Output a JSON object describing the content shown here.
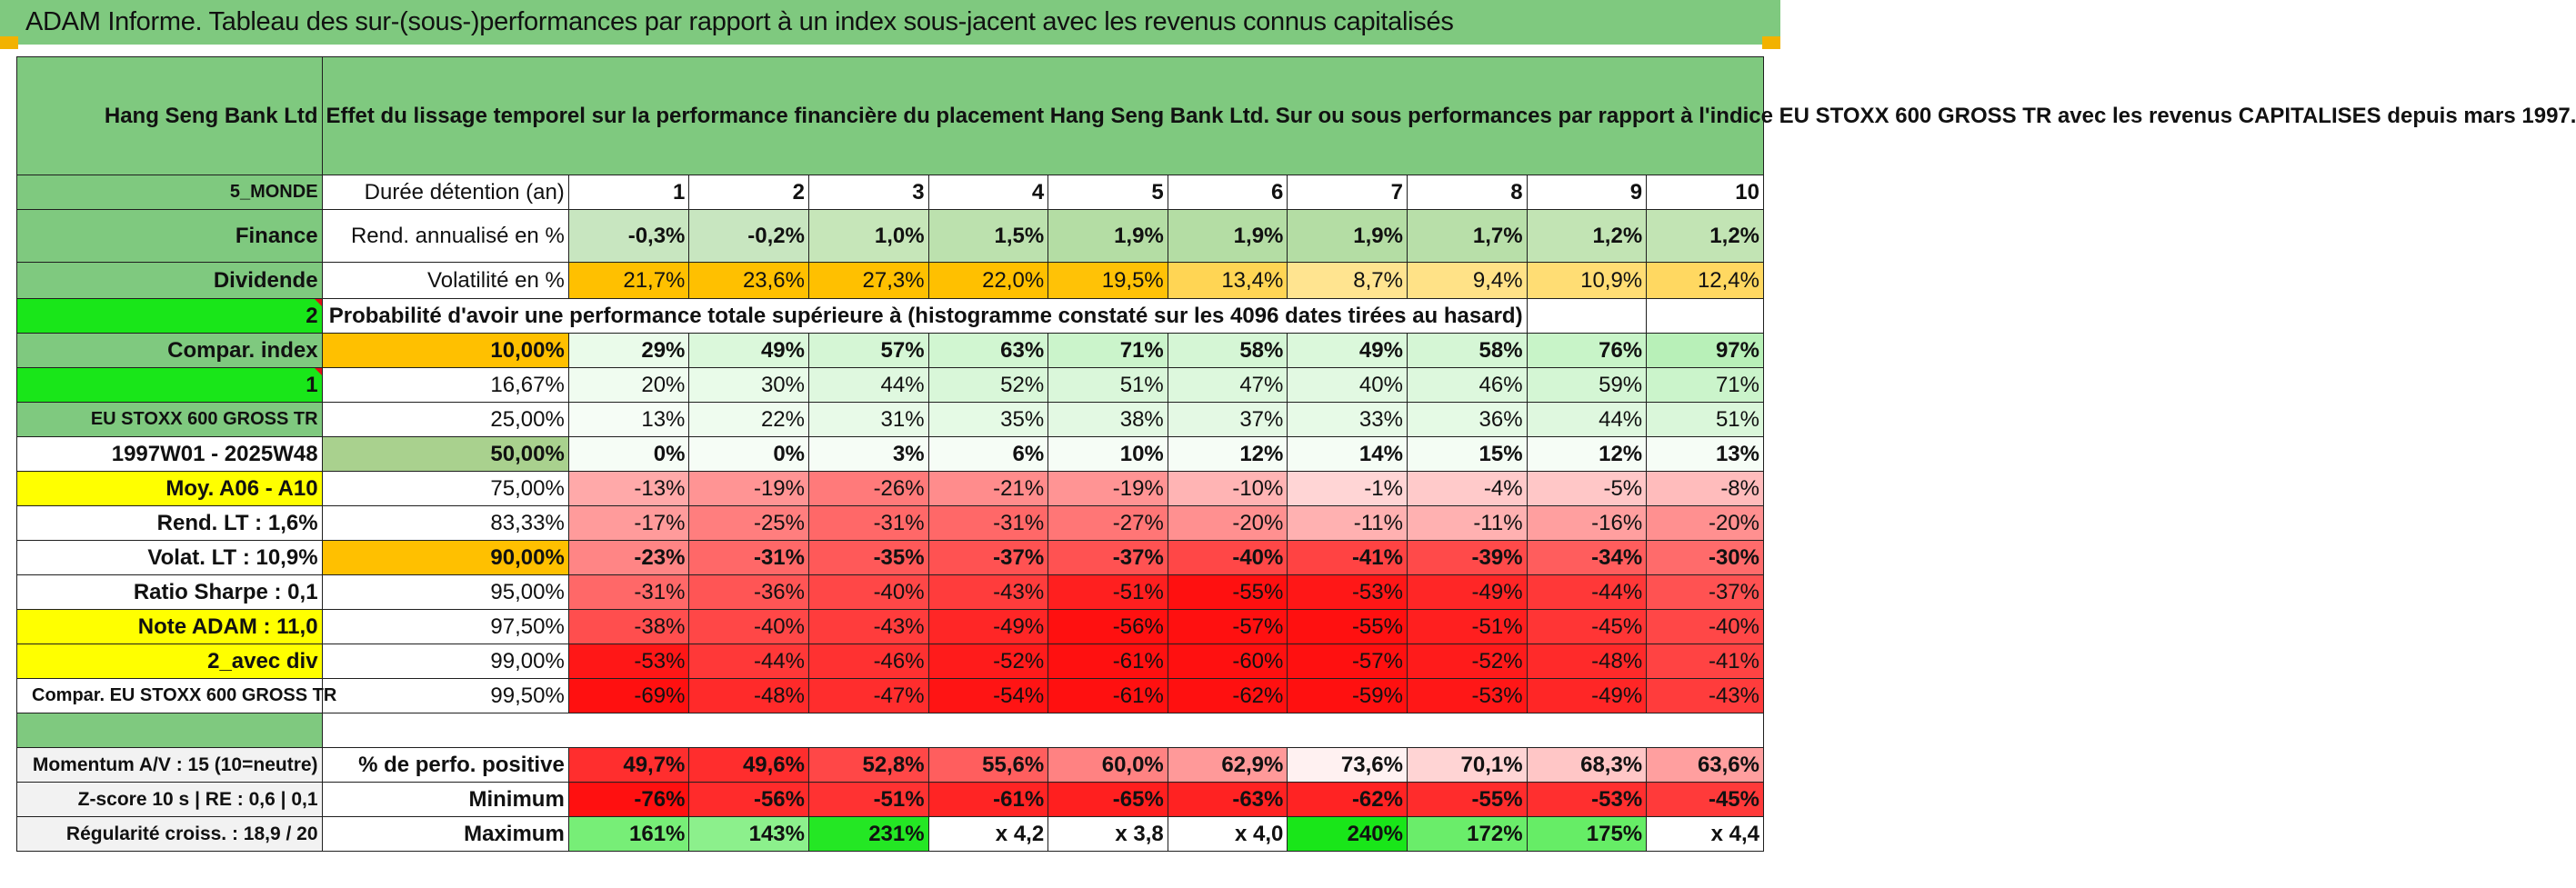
{
  "report_title": "ADAM Informe. Tableau des sur-(sous-)performances par rapport à un index sous-jacent avec les revenus connus capitalisés",
  "header": {
    "company": "Hang Seng Bank Ltd",
    "description": "Effet du lissage temporel sur la performance financière du placement Hang Seng Bank Ltd. Sur ou sous performances par rapport à l'indice EU STOXX 600 GROSS TR avec les revenus CAPITALISES depuis mars 1997."
  },
  "side_labels": {
    "region": "5_MONDE",
    "sector": "Finance",
    "type": "Dividende",
    "value_2": "2",
    "compar_index": "Compar. index",
    "value_1": "1",
    "index_name": "EU STOXX 600 GROSS TR",
    "period": "1997W01 - 2025W48",
    "moy": "Moy. A06 - A10",
    "rend_lt": "Rend. LT :    1,6%",
    "volat_lt": "Volat. LT :    10,9%",
    "ratio_sharpe": "Ratio Sharpe :    0,1",
    "note_adam": "Note ADAM : 11,0",
    "avec_div": "2_avec div",
    "compar_full": "Compar. EU STOXX 600 GROSS TR"
  },
  "years_label": "Durée détention (an)",
  "years": [
    "1",
    "2",
    "3",
    "4",
    "5",
    "6",
    "7",
    "8",
    "9",
    "10"
  ],
  "rend": {
    "label": "Rend. annualisé en %",
    "values": [
      "-0,3%",
      "-0,2%",
      "1,0%",
      "1,5%",
      "1,9%",
      "1,9%",
      "1,9%",
      "1,7%",
      "1,2%",
      "1,2%"
    ]
  },
  "vol": {
    "label": "Volatilité en %",
    "values": [
      "21,7%",
      "23,6%",
      "27,3%",
      "22,0%",
      "19,5%",
      "13,4%",
      "8,7%",
      "9,4%",
      "10,9%",
      "12,4%"
    ]
  },
  "prob_title": "Probabilité d'avoir une performance totale supérieure à (histogramme constaté sur les 4096 dates tirées au hasard)",
  "prob_rows": [
    {
      "pct": "10,00%",
      "values": [
        "29%",
        "49%",
        "57%",
        "63%",
        "71%",
        "58%",
        "49%",
        "58%",
        "76%",
        "97%"
      ]
    },
    {
      "pct": "16,67%",
      "values": [
        "20%",
        "30%",
        "44%",
        "52%",
        "51%",
        "47%",
        "40%",
        "46%",
        "59%",
        "71%"
      ]
    },
    {
      "pct": "25,00%",
      "values": [
        "13%",
        "22%",
        "31%",
        "35%",
        "38%",
        "37%",
        "33%",
        "36%",
        "44%",
        "51%"
      ]
    },
    {
      "pct": "50,00%",
      "values": [
        "0%",
        "0%",
        "3%",
        "6%",
        "10%",
        "12%",
        "14%",
        "15%",
        "12%",
        "13%"
      ]
    },
    {
      "pct": "75,00%",
      "values": [
        "-13%",
        "-19%",
        "-26%",
        "-21%",
        "-19%",
        "-10%",
        "-1%",
        "-4%",
        "-5%",
        "-8%"
      ]
    },
    {
      "pct": "83,33%",
      "values": [
        "-17%",
        "-25%",
        "-31%",
        "-31%",
        "-27%",
        "-20%",
        "-11%",
        "-11%",
        "-16%",
        "-20%"
      ]
    },
    {
      "pct": "90,00%",
      "values": [
        "-23%",
        "-31%",
        "-35%",
        "-37%",
        "-37%",
        "-40%",
        "-41%",
        "-39%",
        "-34%",
        "-30%"
      ]
    },
    {
      "pct": "95,00%",
      "values": [
        "-31%",
        "-36%",
        "-40%",
        "-43%",
        "-51%",
        "-55%",
        "-53%",
        "-49%",
        "-44%",
        "-37%"
      ]
    },
    {
      "pct": "97,50%",
      "values": [
        "-38%",
        "-40%",
        "-43%",
        "-49%",
        "-56%",
        "-57%",
        "-55%",
        "-51%",
        "-45%",
        "-40%"
      ]
    },
    {
      "pct": "99,00%",
      "values": [
        "-53%",
        "-44%",
        "-46%",
        "-52%",
        "-61%",
        "-60%",
        "-57%",
        "-52%",
        "-48%",
        "-41%"
      ]
    },
    {
      "pct": "99,50%",
      "values": [
        "-69%",
        "-48%",
        "-47%",
        "-54%",
        "-61%",
        "-62%",
        "-59%",
        "-53%",
        "-49%",
        "-43%"
      ]
    }
  ],
  "bottom": {
    "momentum": "Momentum A/V : 15 (10=neutre)",
    "zscore": "Z-score 10 s | RE : 0,6 | 0,1",
    "regularite": "Régularité croiss. : 18,9 / 20",
    "pos": {
      "label": "% de perfo. positive",
      "values": [
        "49,7%",
        "49,6%",
        "52,8%",
        "55,6%",
        "60,0%",
        "62,9%",
        "73,6%",
        "70,1%",
        "68,3%",
        "63,6%"
      ]
    },
    "min": {
      "label": "Minimum",
      "values": [
        "-76%",
        "-56%",
        "-51%",
        "-61%",
        "-65%",
        "-63%",
        "-62%",
        "-55%",
        "-53%",
        "-45%"
      ]
    },
    "max": {
      "label": "Maximum",
      "values": [
        "161%",
        "143%",
        "231%",
        "x 4,2",
        "x 3,8",
        "x 4,0",
        "240%",
        "172%",
        "175%",
        "x 4,4"
      ]
    }
  },
  "colors": {
    "title_green": "#7fc97f",
    "bright_green": "#19e619",
    "orange": "#ffc000",
    "yellow": "#ffff00",
    "red_text": "#e0101a"
  }
}
